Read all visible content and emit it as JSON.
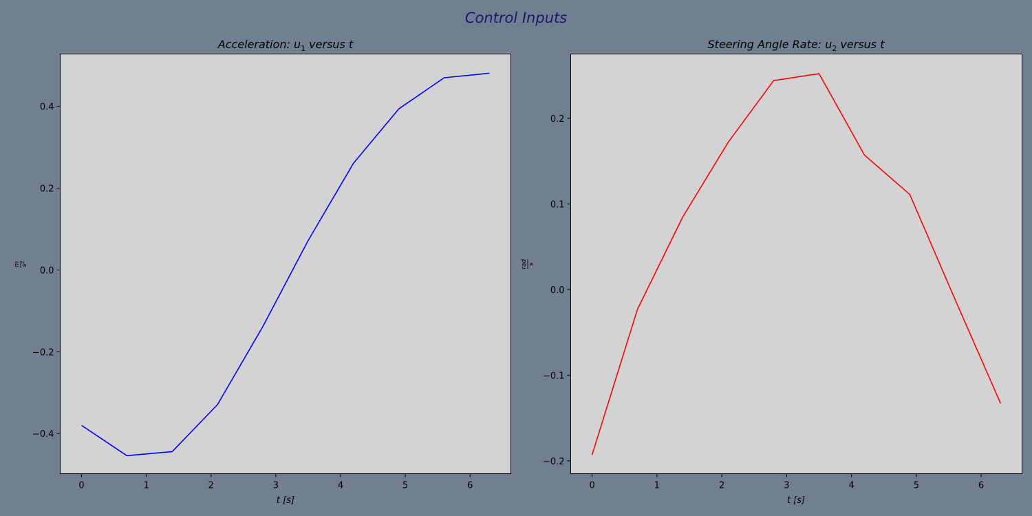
{
  "figure": {
    "suptitle": "Control Inputs",
    "background": "#708090",
    "title_color": "#191970",
    "plot_background": "#d3d3d3"
  },
  "chart_data": [
    {
      "type": "line",
      "title_main": "Acceleration",
      "title_sep": ":",
      "title_var": "u",
      "title_sub": "1",
      "title_tail": "versus t",
      "xlabel": "t [s]",
      "ylabel_num": "m",
      "ylabel_den": "s²",
      "xlim": [
        -0.33,
        6.63
      ],
      "ylim": [
        -0.498,
        0.528
      ],
      "xticks": [
        0,
        1,
        2,
        3,
        4,
        5,
        6
      ],
      "xtick_labels": [
        "0",
        "1",
        "2",
        "3",
        "4",
        "5",
        "6"
      ],
      "yticks": [
        -0.4,
        -0.2,
        0.0,
        0.2,
        0.4
      ],
      "ytick_labels": [
        "−0.4",
        "−0.2",
        "0.0",
        "0.2",
        "0.4"
      ],
      "grid": false,
      "series": [
        {
          "color": "#0000ff",
          "x": [
            0,
            0.7,
            1.4,
            2.1,
            2.8,
            3.5,
            4.2,
            4.9,
            5.6,
            6.3
          ],
          "y": [
            -0.38,
            -0.454,
            -0.444,
            -0.329,
            -0.138,
            0.072,
            0.261,
            0.394,
            0.47,
            0.481
          ]
        }
      ]
    },
    {
      "type": "line",
      "title_main": "Steering Angle Rate",
      "title_sep": ":",
      "title_var": "u",
      "title_sub": "2",
      "title_tail": "versus t",
      "xlabel": "t [s]",
      "ylabel_num": "rad",
      "ylabel_den": "s",
      "xlim": [
        -0.33,
        6.63
      ],
      "ylim": [
        -0.215,
        0.275
      ],
      "xticks": [
        0,
        1,
        2,
        3,
        4,
        5,
        6
      ],
      "xtick_labels": [
        "0",
        "1",
        "2",
        "3",
        "4",
        "5",
        "6"
      ],
      "yticks": [
        -0.2,
        -0.1,
        0.0,
        0.1,
        0.2
      ],
      "ytick_labels": [
        "−0.2",
        "−0.1",
        "0.0",
        "0.1",
        "0.2"
      ],
      "grid": false,
      "series": [
        {
          "color": "#ff0000",
          "x": [
            0,
            0.7,
            1.4,
            2.1,
            2.8,
            3.5,
            4.2,
            4.9,
            5.6,
            6.3
          ],
          "y": [
            -0.193,
            -0.023,
            0.085,
            0.172,
            0.244,
            0.252,
            0.157,
            0.111,
            -0.012,
            -0.133
          ]
        }
      ]
    }
  ]
}
